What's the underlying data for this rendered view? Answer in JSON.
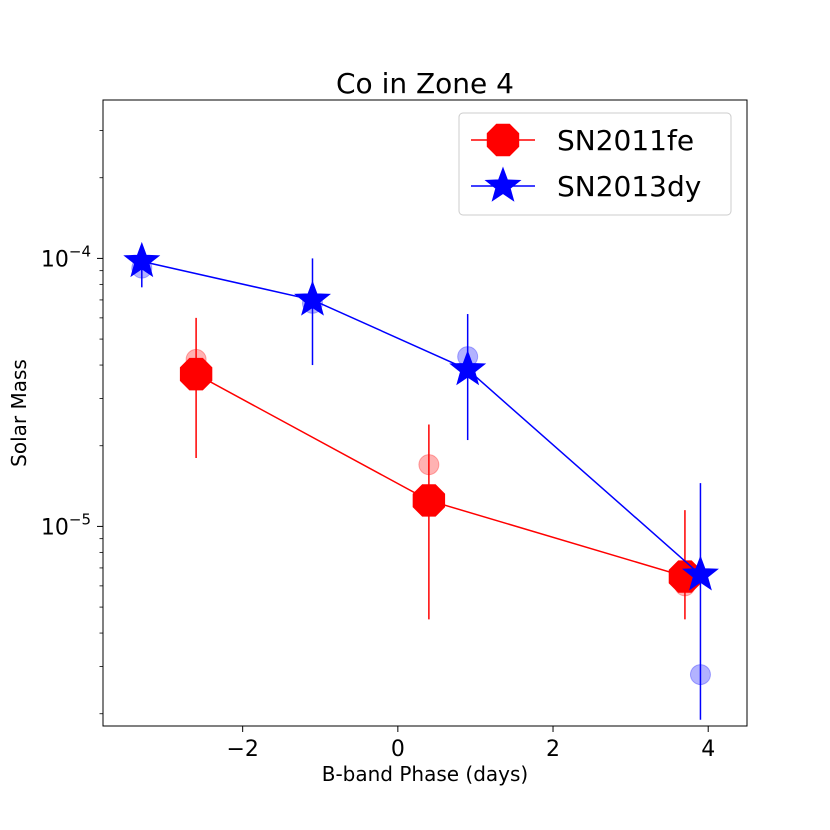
{
  "chart_data": {
    "type": "line",
    "title": "Co in Zone 4",
    "xlabel": "B-band Phase (days)",
    "ylabel": "Solar Mass",
    "yscale": "log",
    "xlim": [
      -3.8,
      4.5
    ],
    "ylim": [
      1.8e-06,
      0.00039
    ],
    "xticks": [
      -2,
      0,
      2,
      4
    ],
    "xtick_labels": [
      "−2",
      "0",
      "2",
      "4"
    ],
    "ytick_labels": [
      {
        "value": 0.0001,
        "base": "10",
        "exp": "−4"
      },
      {
        "value": 1e-05,
        "base": "10",
        "exp": "−5"
      }
    ],
    "legend_position": "top-right",
    "series": [
      {
        "name": "SN2011fe",
        "color": "#ff0000",
        "marker": "octagon",
        "x": [
          -2.6,
          0.4,
          3.7
        ],
        "y": [
          3.7e-05,
          1.25e-05,
          6.5e-06
        ],
        "yerr_low": [
          1.8e-05,
          4.5e-06,
          4.5e-06
        ],
        "yerr_high": [
          6e-05,
          2.4e-05,
          1.15e-05
        ],
        "faded_points": [
          {
            "x": -2.6,
            "y": 4.2e-05
          },
          {
            "x": 0.4,
            "y": 1.7e-05
          },
          {
            "x": 3.7,
            "y": 6e-06
          }
        ]
      },
      {
        "name": "SN2013dy",
        "color": "#0000ff",
        "marker": "star",
        "x": [
          -3.3,
          -1.1,
          0.9,
          3.9
        ],
        "y": [
          9.75e-05,
          7e-05,
          3.85e-05,
          6.6e-06
        ],
        "yerr_low": [
          7.8e-05,
          4e-05,
          2.1e-05,
          1.9e-06
        ],
        "yerr_high": [
          0.000102,
          0.0001,
          6.2e-05,
          1.45e-05
        ],
        "faded_points": [
          {
            "x": -3.3,
            "y": 9.2e-05
          },
          {
            "x": -1.1,
            "y": 6.8e-05
          },
          {
            "x": 0.9,
            "y": 4.3e-05
          },
          {
            "x": 3.9,
            "y": 2.8e-06
          }
        ]
      }
    ]
  }
}
